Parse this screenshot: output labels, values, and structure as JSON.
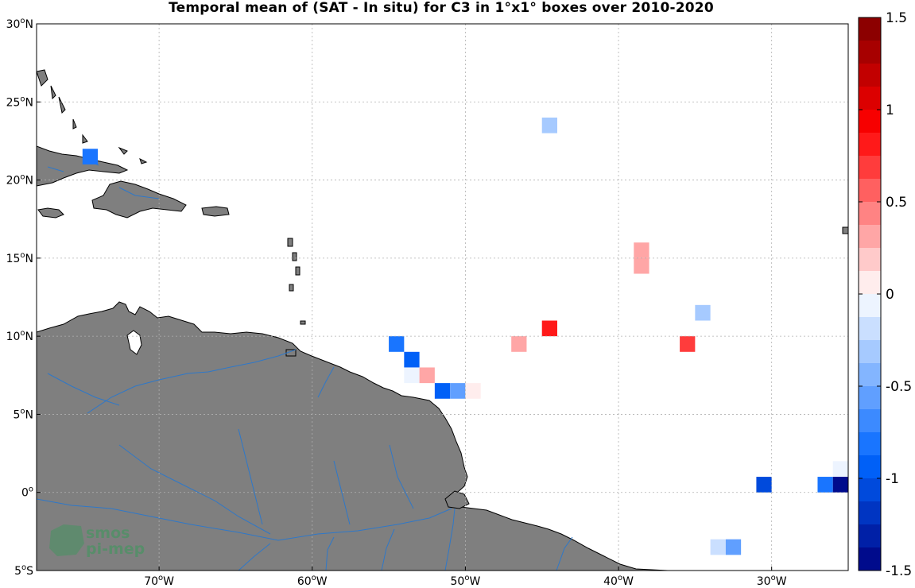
{
  "title": "Temporal mean of (SAT - In situ) for C3 in 1°x1° boxes over 2010-2020",
  "map": {
    "lon_range": [
      -78,
      -25
    ],
    "lat_range": [
      -5,
      30
    ],
    "lon_ticks": [
      {
        "value": -70,
        "label": "70°W"
      },
      {
        "value": -60,
        "label": "60°W"
      },
      {
        "value": -50,
        "label": "50°W"
      },
      {
        "value": -40,
        "label": "40°W"
      },
      {
        "value": -30,
        "label": "30°W"
      }
    ],
    "lat_ticks": [
      {
        "value": 30,
        "label": "30°N"
      },
      {
        "value": 25,
        "label": "25°N"
      },
      {
        "value": 20,
        "label": "20°N"
      },
      {
        "value": 15,
        "label": "15°N"
      },
      {
        "value": 10,
        "label": "10°N"
      },
      {
        "value": 5,
        "label": "5°N"
      },
      {
        "value": 0,
        "label": "0°"
      },
      {
        "value": -5,
        "label": "5°S"
      }
    ],
    "grid": true,
    "land_color": "#7f7f7f",
    "river_color": "#2f78c8",
    "ocean_color": "#ffffff"
  },
  "colorbar": {
    "min": -1.5,
    "max": 1.5,
    "ticks": [
      "1.5",
      "1",
      "0.5",
      "0",
      "-0.5",
      "-1",
      "-1.5"
    ],
    "levels": 24,
    "low_color": "#00007f",
    "mid_color": "#ffffff",
    "high_color": "#7f0000"
  },
  "chart_data": {
    "type": "heatmap",
    "title": "Temporal mean of (SAT - In situ) for C3 in 1°x1° boxes over 2010-2020",
    "xlabel": "",
    "ylabel": "",
    "cell_size_deg": 1,
    "cells": [
      {
        "lon": -74.5,
        "lat": 21.5,
        "value": -0.8
      },
      {
        "lon": -44.5,
        "lat": 23.5,
        "value": -0.3
      },
      {
        "lon": -38.5,
        "lat": 15.5,
        "value": 0.3
      },
      {
        "lon": -38.5,
        "lat": 14.5,
        "value": 0.3
      },
      {
        "lon": -34.5,
        "lat": 11.5,
        "value": -0.3
      },
      {
        "lon": -44.5,
        "lat": 10.5,
        "value": 0.8
      },
      {
        "lon": -46.5,
        "lat": 9.5,
        "value": 0.3
      },
      {
        "lon": -35.5,
        "lat": 9.5,
        "value": 0.7
      },
      {
        "lon": -54.5,
        "lat": 9.5,
        "value": -0.8
      },
      {
        "lon": -53.5,
        "lat": 8.5,
        "value": -0.9
      },
      {
        "lon": -53.5,
        "lat": 7.5,
        "value": -0.1
      },
      {
        "lon": -52.5,
        "lat": 7.5,
        "value": 0.3
      },
      {
        "lon": -51.5,
        "lat": 6.5,
        "value": -1.0
      },
      {
        "lon": -50.5,
        "lat": 6.5,
        "value": -0.6
      },
      {
        "lon": -49.5,
        "lat": 6.5,
        "value": 0.1
      },
      {
        "lon": -25.5,
        "lat": 1.5,
        "value": -0.1
      },
      {
        "lon": -30.5,
        "lat": 0.5,
        "value": -1.1
      },
      {
        "lon": -26.5,
        "lat": 0.5,
        "value": -0.8
      },
      {
        "lon": -25.5,
        "lat": 0.5,
        "value": -1.5
      },
      {
        "lon": -33.5,
        "lat": -3.5,
        "value": -0.2
      },
      {
        "lon": -32.5,
        "lat": -3.5,
        "value": -0.6
      }
    ]
  },
  "watermark": {
    "line1": "smos",
    "line2": "pi-mep"
  }
}
